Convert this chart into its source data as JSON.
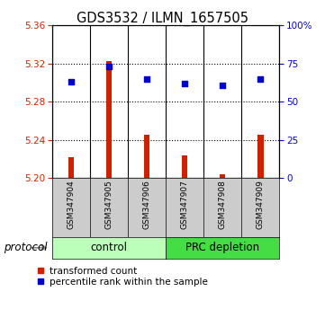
{
  "title": "GDS3532 / ILMN_1657505",
  "samples": [
    "GSM347904",
    "GSM347905",
    "GSM347906",
    "GSM347907",
    "GSM347908",
    "GSM347909"
  ],
  "transformed_count": [
    5.222,
    5.323,
    5.245,
    5.224,
    5.204,
    5.245
  ],
  "percentile_rank": [
    63,
    73,
    65,
    62,
    61,
    65
  ],
  "ylim_left": [
    5.2,
    5.36
  ],
  "ylim_right": [
    0,
    100
  ],
  "yticks_left": [
    5.2,
    5.24,
    5.28,
    5.32,
    5.36
  ],
  "yticks_right": [
    0,
    25,
    50,
    75,
    100
  ],
  "yticklabels_right": [
    "0",
    "25",
    "50",
    "75",
    "100%"
  ],
  "bar_color": "#cc2200",
  "dot_color": "#0000cc",
  "bar_base": 5.2,
  "protocol_groups": [
    {
      "label": "control",
      "samples_idx": [
        0,
        1,
        2
      ],
      "color": "#bbffbb"
    },
    {
      "label": "PRC depletion",
      "samples_idx": [
        3,
        4,
        5
      ],
      "color": "#44dd44"
    }
  ],
  "protocol_label": "protocol",
  "legend_items": [
    {
      "label": "transformed count",
      "color": "#cc2200"
    },
    {
      "label": "percentile rank within the sample",
      "color": "#0000cc"
    }
  ],
  "tick_label_color_left": "#cc2200",
  "tick_label_color_right": "#0000cc",
  "tick_bg_color": "#cccccc",
  "plot_bg": "#ffffff"
}
